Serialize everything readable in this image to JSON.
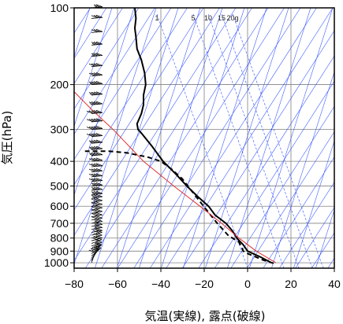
{
  "chart_data": {
    "type": "line",
    "title": "",
    "xlabel": "気温(実線), 露点(破線)",
    "ylabel": "気圧(hPa)",
    "y_scale": "log",
    "xlim": [
      -80,
      40
    ],
    "ylim": [
      1050,
      100
    ],
    "x_ticks": [
      -80,
      -60,
      -40,
      -20,
      0,
      20,
      40
    ],
    "x_tick_labels": [
      "−80",
      "−60",
      "−40",
      "−20",
      "0",
      "20",
      "40"
    ],
    "y_ticks": [
      100,
      200,
      300,
      400,
      500,
      600,
      700,
      800,
      900,
      1000
    ],
    "y_tick_labels": [
      "100",
      "200",
      "300",
      "400",
      "500",
      "600",
      "700",
      "800",
      "900",
      "1000"
    ],
    "mixing_ratio_labels": [
      "1",
      "5",
      "10",
      "15",
      "20g"
    ],
    "mixing_ratio_values": [
      1,
      5,
      10,
      15,
      20
    ],
    "grid": true,
    "series": [
      {
        "role": "temperature",
        "style": "solid",
        "color": "#000000",
        "points": [
          [
            11,
            1000
          ],
          [
            6,
            950
          ],
          [
            0,
            900
          ],
          [
            -2,
            850
          ],
          [
            -5,
            800
          ],
          [
            -7,
            750
          ],
          [
            -10,
            700
          ],
          [
            -15,
            650
          ],
          [
            -18,
            600
          ],
          [
            -23,
            550
          ],
          [
            -28,
            500
          ],
          [
            -33,
            450
          ],
          [
            -39,
            400
          ],
          [
            -44,
            350
          ],
          [
            -49,
            310
          ],
          [
            -50.5,
            300
          ],
          [
            -51,
            285
          ],
          [
            -49,
            260
          ],
          [
            -48,
            240
          ],
          [
            -48,
            220
          ],
          [
            -47,
            200
          ],
          [
            -47.5,
            180
          ],
          [
            -49,
            160
          ],
          [
            -51,
            145
          ],
          [
            -51.5,
            130
          ],
          [
            -52,
            120
          ],
          [
            -51.5,
            110
          ],
          [
            -52,
            100
          ]
        ]
      },
      {
        "role": "dewpoint",
        "style": "dashed",
        "color": "#000000",
        "points": [
          [
            12,
            1005
          ],
          [
            7,
            975
          ],
          [
            4,
            950
          ],
          [
            0,
            920
          ],
          [
            -2,
            900
          ],
          [
            -3,
            860
          ],
          [
            -4,
            830
          ],
          [
            -9,
            780
          ],
          [
            -14,
            700
          ],
          [
            -19,
            620
          ],
          [
            -26,
            520
          ],
          [
            -30,
            470
          ],
          [
            -35,
            430
          ],
          [
            -40,
            400
          ],
          [
            -46,
            385
          ],
          [
            -56,
            370
          ],
          [
            -64,
            365
          ],
          [
            -72,
            365
          ],
          [
            -75,
            365
          ]
        ]
      },
      {
        "role": "parcel",
        "style": "solid",
        "color": "#e03030",
        "points": [
          [
            13,
            1000
          ],
          [
            4,
            900
          ],
          [
            -4,
            800
          ],
          [
            -12,
            700
          ],
          [
            -22,
            600
          ],
          [
            -34,
            500
          ],
          [
            -48,
            400
          ],
          [
            -62,
            300
          ],
          [
            -72,
            250
          ],
          [
            -82,
            205
          ]
        ]
      }
    ],
    "wind_barbs": {
      "color": "#000000",
      "levels": [
        {
          "p": 1000,
          "speed_kt": 10,
          "dir": 200
        },
        {
          "p": 980,
          "speed_kt": 10,
          "dir": 210
        },
        {
          "p": 960,
          "speed_kt": 10,
          "dir": 220
        },
        {
          "p": 940,
          "speed_kt": 15,
          "dir": 230
        },
        {
          "p": 920,
          "speed_kt": 15,
          "dir": 240
        },
        {
          "p": 900,
          "speed_kt": 15,
          "dir": 240
        },
        {
          "p": 880,
          "speed_kt": 15,
          "dir": 250
        },
        {
          "p": 860,
          "speed_kt": 15,
          "dir": 250
        },
        {
          "p": 840,
          "speed_kt": 20,
          "dir": 250
        },
        {
          "p": 820,
          "speed_kt": 20,
          "dir": 255
        },
        {
          "p": 800,
          "speed_kt": 20,
          "dir": 255
        },
        {
          "p": 780,
          "speed_kt": 20,
          "dir": 255
        },
        {
          "p": 760,
          "speed_kt": 20,
          "dir": 260
        },
        {
          "p": 740,
          "speed_kt": 25,
          "dir": 260
        },
        {
          "p": 720,
          "speed_kt": 25,
          "dir": 260
        },
        {
          "p": 700,
          "speed_kt": 25,
          "dir": 260
        },
        {
          "p": 680,
          "speed_kt": 30,
          "dir": 260
        },
        {
          "p": 660,
          "speed_kt": 30,
          "dir": 260
        },
        {
          "p": 640,
          "speed_kt": 30,
          "dir": 260
        },
        {
          "p": 620,
          "speed_kt": 30,
          "dir": 260
        },
        {
          "p": 600,
          "speed_kt": 30,
          "dir": 260
        },
        {
          "p": 580,
          "speed_kt": 30,
          "dir": 260
        },
        {
          "p": 560,
          "speed_kt": 35,
          "dir": 260
        },
        {
          "p": 540,
          "speed_kt": 35,
          "dir": 265
        },
        {
          "p": 520,
          "speed_kt": 35,
          "dir": 265
        },
        {
          "p": 500,
          "speed_kt": 35,
          "dir": 265
        },
        {
          "p": 480,
          "speed_kt": 40,
          "dir": 265
        },
        {
          "p": 460,
          "speed_kt": 40,
          "dir": 265
        },
        {
          "p": 440,
          "speed_kt": 40,
          "dir": 265
        },
        {
          "p": 420,
          "speed_kt": 40,
          "dir": 265
        },
        {
          "p": 400,
          "speed_kt": 40,
          "dir": 265
        },
        {
          "p": 380,
          "speed_kt": 45,
          "dir": 265
        },
        {
          "p": 360,
          "speed_kt": 45,
          "dir": 265
        },
        {
          "p": 340,
          "speed_kt": 45,
          "dir": 265
        },
        {
          "p": 320,
          "speed_kt": 50,
          "dir": 265
        },
        {
          "p": 300,
          "speed_kt": 50,
          "dir": 265
        },
        {
          "p": 280,
          "speed_kt": 50,
          "dir": 265
        },
        {
          "p": 260,
          "speed_kt": 50,
          "dir": 265
        },
        {
          "p": 240,
          "speed_kt": 45,
          "dir": 265
        },
        {
          "p": 220,
          "speed_kt": 45,
          "dir": 265
        },
        {
          "p": 200,
          "speed_kt": 45,
          "dir": 265
        },
        {
          "p": 185,
          "speed_kt": 40,
          "dir": 265
        },
        {
          "p": 170,
          "speed_kt": 40,
          "dir": 265
        },
        {
          "p": 155,
          "speed_kt": 35,
          "dir": 265
        },
        {
          "p": 140,
          "speed_kt": 35,
          "dir": 265
        },
        {
          "p": 125,
          "speed_kt": 30,
          "dir": 265
        },
        {
          "p": 110,
          "speed_kt": 30,
          "dir": 265
        },
        {
          "p": 100,
          "speed_kt": 25,
          "dir": 265
        }
      ]
    },
    "colors": {
      "background": "#ffffff",
      "frame": "#000000",
      "grid": "#808080",
      "mixing_ratio_lines": "#3050ff",
      "adiabat_lines": "#3050ff"
    }
  }
}
